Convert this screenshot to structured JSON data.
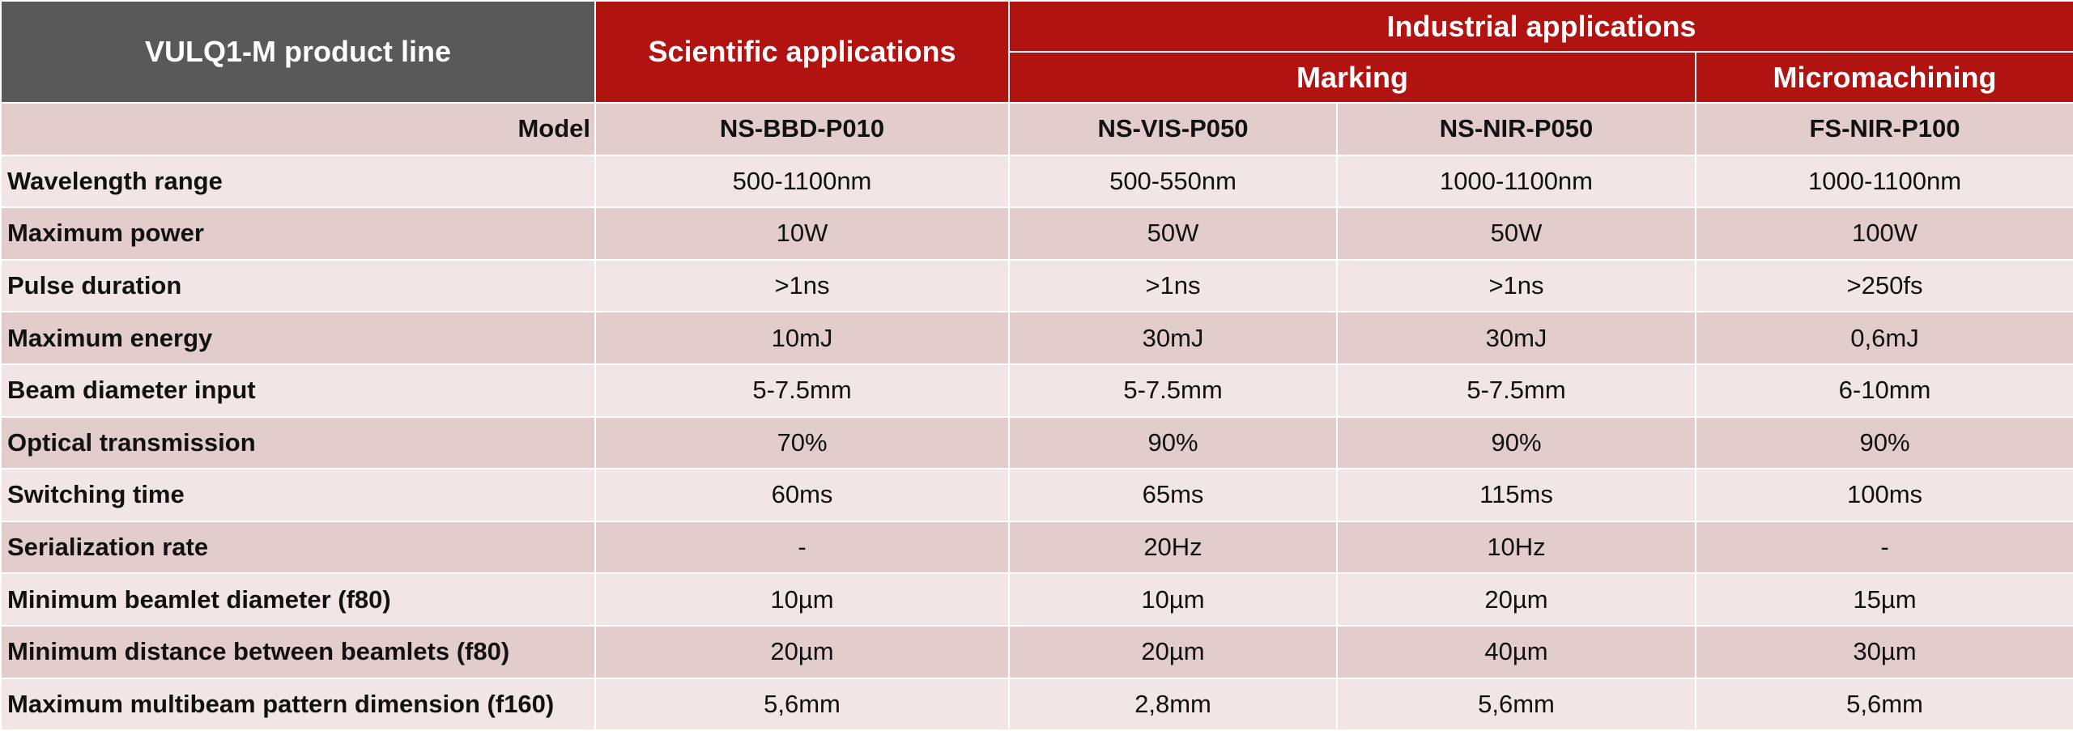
{
  "header": {
    "product_line": "VULQ1-M product line",
    "scientific": "Scientific applications",
    "industrial": "Industrial applications",
    "marking": "Marking",
    "micromachining": "Micromachining"
  },
  "model_row": {
    "label": "Model",
    "values": [
      "NS-BBD-P010",
      "NS-VIS-P050",
      "NS-NIR-P050",
      "FS-NIR-P100"
    ]
  },
  "rows": [
    {
      "label": "Wavelength range",
      "values": [
        "500-1100nm",
        "500-550nm",
        "1000-1100nm",
        "1000-1100nm"
      ]
    },
    {
      "label": "Maximum power",
      "values": [
        "10W",
        "50W",
        "50W",
        "100W"
      ]
    },
    {
      "label": "Pulse duration",
      "values": [
        ">1ns",
        ">1ns",
        ">1ns",
        ">250fs"
      ]
    },
    {
      "label": "Maximum energy",
      "values": [
        "10mJ",
        "30mJ",
        "30mJ",
        "0,6mJ"
      ]
    },
    {
      "label": "Beam diameter input",
      "values": [
        "5-7.5mm",
        "5-7.5mm",
        "5-7.5mm",
        "6-10mm"
      ]
    },
    {
      "label": "Optical transmission",
      "values": [
        "70%",
        "90%",
        "90%",
        "90%"
      ]
    },
    {
      "label": "Switching time",
      "values": [
        "60ms",
        "65ms",
        "115ms",
        "100ms"
      ]
    },
    {
      "label": "Serialization rate",
      "values": [
        "-",
        "20Hz",
        "10Hz",
        "-"
      ]
    },
    {
      "label": "Minimum beamlet diameter (f80)",
      "values": [
        "10µm",
        "10µm",
        "20µm",
        "15µm"
      ]
    },
    {
      "label": "Minimum distance between beamlets (f80)",
      "values": [
        "20µm",
        "20µm",
        "40µm",
        "30µm"
      ]
    },
    {
      "label": "Maximum multibeam pattern dimension (f160)",
      "values": [
        "5,6mm",
        "2,8mm",
        "5,6mm",
        "5,6mm"
      ]
    }
  ]
}
